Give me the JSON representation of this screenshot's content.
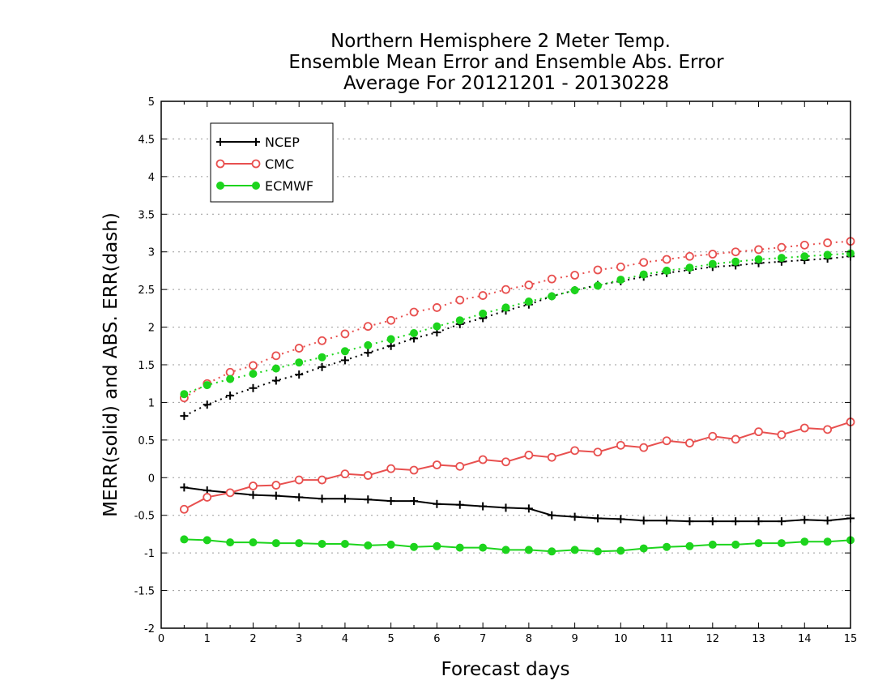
{
  "chart_data": {
    "type": "line",
    "title_lines": [
      "Northern Hemisphere 2 Meter Temp.",
      "Ensemble Mean Error and Ensemble Abs. Error",
      "Average For 20121201 - 20130228"
    ],
    "xlabel": "Forecast days",
    "ylabel": "MERR(solid) and ABS. ERR(dash)",
    "xlim": [
      0,
      15
    ],
    "ylim": [
      -2,
      5
    ],
    "x_ticks": [
      0,
      1,
      2,
      3,
      4,
      5,
      6,
      7,
      8,
      9,
      10,
      11,
      12,
      13,
      14,
      15
    ],
    "x_tick_labels": [
      "0",
      "1",
      "2",
      "3",
      "4",
      "5",
      "6",
      "7",
      "8",
      "9",
      "10",
      "11",
      "12",
      "13",
      "14",
      "15"
    ],
    "y_ticks": [
      -2,
      -1.5,
      -1,
      -0.5,
      0,
      0.5,
      1,
      1.5,
      2,
      2.5,
      3,
      3.5,
      4,
      4.5,
      5
    ],
    "y_tick_labels": [
      "-2",
      "-1.5",
      "-1",
      "-0.5",
      "0",
      "0.5",
      "1",
      "1.5",
      "2",
      "2.5",
      "3",
      "3.5",
      "4",
      "4.5",
      "5"
    ],
    "grid": "horizontal dotted",
    "legend_position": "top-left",
    "x": [
      0.5,
      1,
      1.5,
      2,
      2.5,
      3,
      3.5,
      4,
      4.5,
      5,
      5.5,
      6,
      6.5,
      7,
      7.5,
      8,
      8.5,
      9,
      9.5,
      10,
      10.5,
      11,
      11.5,
      12,
      12.5,
      13,
      13.5,
      14,
      14.5,
      15
    ],
    "series": [
      {
        "name": "NCEP",
        "color": "#000000",
        "marker": "plus",
        "mean_error": [
          -0.13,
          -0.17,
          -0.2,
          -0.23,
          -0.24,
          -0.26,
          -0.28,
          -0.28,
          -0.29,
          -0.31,
          -0.31,
          -0.35,
          -0.36,
          -0.38,
          -0.4,
          -0.41,
          -0.5,
          -0.52,
          -0.54,
          -0.55,
          -0.57,
          -0.57,
          -0.58,
          -0.58,
          -0.58,
          -0.58,
          -0.58,
          -0.56,
          -0.57,
          -0.54
        ],
        "abs_error": [
          0.82,
          0.97,
          1.09,
          1.19,
          1.29,
          1.37,
          1.47,
          1.56,
          1.66,
          1.75,
          1.85,
          1.93,
          2.04,
          2.12,
          2.22,
          2.3,
          2.41,
          2.49,
          2.56,
          2.61,
          2.67,
          2.72,
          2.76,
          2.8,
          2.82,
          2.85,
          2.87,
          2.89,
          2.91,
          2.94
        ]
      },
      {
        "name": "CMC",
        "color": "#e8504f",
        "marker": "open-circle",
        "mean_error": [
          -0.42,
          -0.26,
          -0.2,
          -0.11,
          -0.1,
          -0.03,
          -0.03,
          0.05,
          0.03,
          0.12,
          0.1,
          0.17,
          0.15,
          0.24,
          0.21,
          0.3,
          0.27,
          0.36,
          0.34,
          0.43,
          0.4,
          0.49,
          0.46,
          0.55,
          0.51,
          0.61,
          0.57,
          0.66,
          0.64,
          0.74
        ],
        "abs_error": [
          1.06,
          1.25,
          1.4,
          1.49,
          1.62,
          1.72,
          1.82,
          1.91,
          2.01,
          2.09,
          2.2,
          2.26,
          2.36,
          2.42,
          2.5,
          2.56,
          2.64,
          2.69,
          2.76,
          2.8,
          2.86,
          2.9,
          2.94,
          2.97,
          3.0,
          3.03,
          3.06,
          3.09,
          3.12,
          3.14
        ]
      },
      {
        "name": "ECMWF",
        "color": "#1dd41d",
        "marker": "filled-circle",
        "mean_error": [
          -0.82,
          -0.83,
          -0.86,
          -0.86,
          -0.87,
          -0.87,
          -0.88,
          -0.88,
          -0.9,
          -0.89,
          -0.92,
          -0.91,
          -0.93,
          -0.93,
          -0.96,
          -0.96,
          -0.98,
          -0.96,
          -0.98,
          -0.97,
          -0.94,
          -0.92,
          -0.91,
          -0.89,
          -0.89,
          -0.87,
          -0.87,
          -0.85,
          -0.85,
          -0.83
        ],
        "abs_error": [
          1.11,
          1.23,
          1.31,
          1.38,
          1.45,
          1.53,
          1.6,
          1.68,
          1.76,
          1.84,
          1.92,
          2.01,
          2.09,
          2.18,
          2.26,
          2.34,
          2.41,
          2.49,
          2.55,
          2.63,
          2.7,
          2.75,
          2.79,
          2.84,
          2.87,
          2.9,
          2.92,
          2.94,
          2.96,
          2.98
        ]
      }
    ]
  }
}
